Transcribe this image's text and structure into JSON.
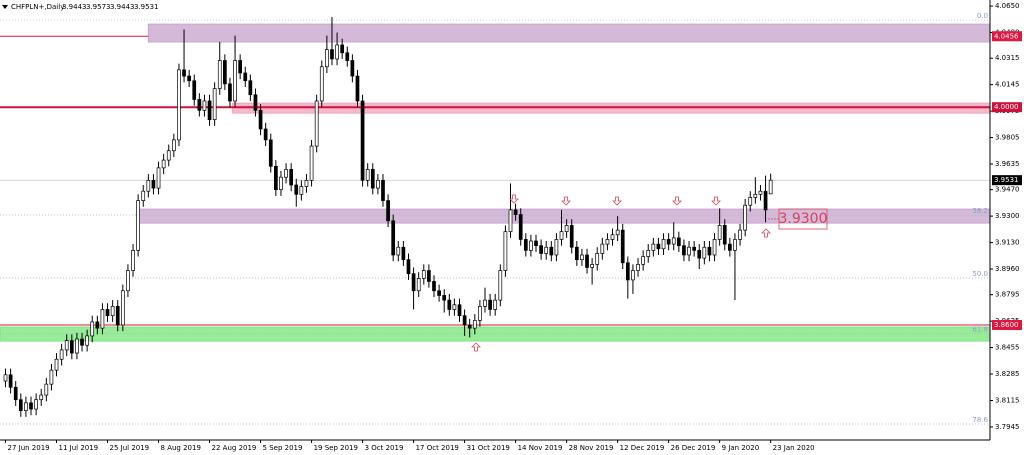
{
  "chart_data": {
    "type": "candlestick",
    "symbol": "CHFPLN+,Daily",
    "xlim": [
      -1.08,
      193.0
    ],
    "ylim": [
      3.7861,
      4.0689
    ],
    "xticks": [
      {
        "value": 0,
        "label": "27 Jun 2019"
      },
      {
        "value": 10,
        "label": "11 Jul 2019"
      },
      {
        "value": 20,
        "label": "25 Jul 2019"
      },
      {
        "value": 30,
        "label": "8 Aug 2019"
      },
      {
        "value": 40,
        "label": "22 Aug 2019"
      },
      {
        "value": 50,
        "label": "5 Sep 2019"
      },
      {
        "value": 60,
        "label": "19 Sep 2019"
      },
      {
        "value": 70,
        "label": "3 Oct 2019"
      },
      {
        "value": 80,
        "label": "17 Oct 2019"
      },
      {
        "value": 90,
        "label": "31 Oct 2019"
      },
      {
        "value": 100,
        "label": "14 Nov 2019"
      },
      {
        "value": 110,
        "label": "28 Nov 2019"
      },
      {
        "value": 120,
        "label": "12 Dec 2019"
      },
      {
        "value": 130,
        "label": "26 Dec 2019"
      },
      {
        "value": 140,
        "label": "9 Jan 2020"
      },
      {
        "value": 150,
        "label": "23 Jan 2020"
      }
    ],
    "yticks": [
      {
        "value": 4.065,
        "label": "4.0650"
      },
      {
        "value": 4.048,
        "label": "4.0480"
      },
      4.0315,
      4.0145,
      3.9975,
      3.9805,
      3.9635,
      {
        "value": 3.947,
        "label": "3.9470"
      },
      {
        "value": 3.93,
        "label": "3.9300"
      },
      {
        "value": 3.913,
        "label": "3.9130"
      },
      {
        "value": 3.896,
        "label": "3.8960"
      },
      3.8795,
      3.8625,
      3.8455,
      3.8285,
      3.8115,
      3.7945
    ],
    "up_color": "#ffffff",
    "down_color": "#000000",
    "wick_color": "#000000",
    "ohlc": [
      [
        3.824,
        3.832,
        3.82,
        3.828
      ],
      [
        3.828,
        3.832,
        3.816,
        3.82
      ],
      [
        3.82,
        3.824,
        3.808,
        3.812
      ],
      [
        3.812,
        3.816,
        3.801,
        3.805
      ],
      [
        3.805,
        3.814,
        3.801,
        3.81
      ],
      [
        3.81,
        3.814,
        3.802,
        3.806
      ],
      [
        3.806,
        3.816,
        3.802,
        3.812
      ],
      [
        3.812,
        3.819,
        3.808,
        3.815
      ],
      [
        3.815,
        3.826,
        3.811,
        3.822
      ],
      [
        3.822,
        3.835,
        3.818,
        3.831
      ],
      [
        3.831,
        3.842,
        3.827,
        3.838
      ],
      [
        3.838,
        3.848,
        3.834,
        3.844
      ],
      [
        3.844,
        3.854,
        3.84,
        3.85
      ],
      [
        3.85,
        3.854,
        3.838,
        3.842
      ],
      [
        3.842,
        3.855,
        3.838,
        3.851
      ],
      [
        3.851,
        3.855,
        3.843,
        3.847
      ],
      [
        3.847,
        3.857,
        3.843,
        3.853
      ],
      [
        3.853,
        3.866,
        3.849,
        3.862
      ],
      [
        3.862,
        3.866,
        3.854,
        3.858
      ],
      [
        3.858,
        3.874,
        3.854,
        3.87
      ],
      [
        3.87,
        3.874,
        3.862,
        3.866
      ],
      [
        3.866,
        3.876,
        3.862,
        3.872
      ],
      [
        3.872,
        3.876,
        3.856,
        3.86
      ],
      [
        3.86,
        3.886,
        3.856,
        3.882
      ],
      [
        3.882,
        3.899,
        3.878,
        3.895
      ],
      [
        3.895,
        3.912,
        3.891,
        3.908
      ],
      [
        3.908,
        3.944,
        3.904,
        3.94
      ],
      [
        3.94,
        3.95,
        3.936,
        3.946
      ],
      [
        3.946,
        3.957,
        3.942,
        3.953
      ],
      [
        3.953,
        3.957,
        3.944,
        3.948
      ],
      [
        3.948,
        3.965,
        3.944,
        3.961
      ],
      [
        3.961,
        3.97,
        3.957,
        3.966
      ],
      [
        3.966,
        3.976,
        3.962,
        3.972
      ],
      [
        3.972,
        3.983,
        3.968,
        3.979
      ],
      [
        3.979,
        4.028,
        3.975,
        4.024
      ],
      [
        4.024,
        4.05,
        4.016,
        4.02
      ],
      [
        4.02,
        4.024,
        4.013,
        4.017
      ],
      [
        4.017,
        4.021,
        4.001,
        4.005
      ],
      [
        4.005,
        4.009,
        3.994,
        3.998
      ],
      [
        3.998,
        4.008,
        3.994,
        4.004
      ],
      [
        4.004,
        4.008,
        3.988,
        3.992
      ],
      [
        3.992,
        4.016,
        3.988,
        4.012
      ],
      [
        4.012,
        4.042,
        4.008,
        4.03
      ],
      [
        4.03,
        4.034,
        4.011,
        4.015
      ],
      [
        4.015,
        4.019,
        4.0,
        4.004
      ],
      [
        4.004,
        4.046,
        4.0,
        4.03
      ],
      [
        4.03,
        4.034,
        4.018,
        4.022
      ],
      [
        4.022,
        4.026,
        4.013,
        4.017
      ],
      [
        4.017,
        4.021,
        4.004,
        4.008
      ],
      [
        4.008,
        4.012,
        3.994,
        3.998
      ],
      [
        3.998,
        4.002,
        3.982,
        3.986
      ],
      [
        3.986,
        3.99,
        3.975,
        3.979
      ],
      [
        3.979,
        3.983,
        3.958,
        3.962
      ],
      [
        3.962,
        3.966,
        3.943,
        3.947
      ],
      [
        3.947,
        3.959,
        3.943,
        3.955
      ],
      [
        3.955,
        3.964,
        3.951,
        3.96
      ],
      [
        3.96,
        3.964,
        3.946,
        3.95
      ],
      [
        3.95,
        3.954,
        3.936,
        3.944
      ],
      [
        3.944,
        3.953,
        3.94,
        3.949
      ],
      [
        3.949,
        3.957,
        3.945,
        3.953
      ],
      [
        3.953,
        3.979,
        3.949,
        3.975
      ],
      [
        3.975,
        4.008,
        3.971,
        4.004
      ],
      [
        4.004,
        4.03,
        4.0,
        4.026
      ],
      [
        4.026,
        4.046,
        4.022,
        4.037
      ],
      [
        4.037,
        4.058,
        4.027,
        4.031
      ],
      [
        4.031,
        4.048,
        4.027,
        4.04
      ],
      [
        4.04,
        4.044,
        4.031,
        4.035
      ],
      [
        4.035,
        4.039,
        4.026,
        4.03
      ],
      [
        4.03,
        4.034,
        4.016,
        4.02
      ],
      [
        4.02,
        4.024,
        4.0,
        4.004
      ],
      [
        4.004,
        4.008,
        3.949,
        3.953
      ],
      [
        3.953,
        3.964,
        3.949,
        3.96
      ],
      [
        3.96,
        3.964,
        3.944,
        3.948
      ],
      [
        3.948,
        3.957,
        3.944,
        3.953
      ],
      [
        3.953,
        3.957,
        3.936,
        3.94
      ],
      [
        3.94,
        3.944,
        3.923,
        3.927
      ],
      [
        3.927,
        3.931,
        3.901,
        3.905
      ],
      [
        3.905,
        3.914,
        3.901,
        3.91
      ],
      [
        3.91,
        3.914,
        3.898,
        3.902
      ],
      [
        3.902,
        3.906,
        3.889,
        3.893
      ],
      [
        3.893,
        3.897,
        3.87,
        3.882
      ],
      [
        3.882,
        3.894,
        3.878,
        3.89
      ],
      [
        3.89,
        3.899,
        3.886,
        3.895
      ],
      [
        3.895,
        3.899,
        3.884,
        3.888
      ],
      [
        3.888,
        3.892,
        3.878,
        3.882
      ],
      [
        3.882,
        3.886,
        3.875,
        3.879
      ],
      [
        3.879,
        3.883,
        3.868,
        3.876
      ],
      [
        3.876,
        3.88,
        3.866,
        3.87
      ],
      [
        3.87,
        3.877,
        3.866,
        3.873
      ],
      [
        3.873,
        3.877,
        3.862,
        3.866
      ],
      [
        3.866,
        3.87,
        3.853,
        3.86
      ],
      [
        3.86,
        3.864,
        3.852,
        3.858
      ],
      [
        3.858,
        3.867,
        3.854,
        3.863
      ],
      [
        3.863,
        3.876,
        3.859,
        3.872
      ],
      [
        3.872,
        3.884,
        3.868,
        3.876
      ],
      [
        3.876,
        3.88,
        3.866,
        3.87
      ],
      [
        3.87,
        3.88,
        3.866,
        3.876
      ],
      [
        3.876,
        3.899,
        3.872,
        3.895
      ],
      [
        3.895,
        3.924,
        3.891,
        3.92
      ],
      [
        3.92,
        3.951,
        3.916,
        3.934
      ],
      [
        3.934,
        3.938,
        3.927,
        3.931
      ],
      [
        3.931,
        3.935,
        3.911,
        3.915
      ],
      [
        3.915,
        3.919,
        3.904,
        3.908
      ],
      [
        3.908,
        3.918,
        3.904,
        3.914
      ],
      [
        3.914,
        3.918,
        3.907,
        3.911
      ],
      [
        3.911,
        3.915,
        3.902,
        3.906
      ],
      [
        3.906,
        3.914,
        3.902,
        3.91
      ],
      [
        3.91,
        3.914,
        3.901,
        3.905
      ],
      [
        3.905,
        3.919,
        3.901,
        3.915
      ],
      [
        3.915,
        3.934,
        3.911,
        3.92
      ],
      [
        3.92,
        3.928,
        3.916,
        3.924
      ],
      [
        3.924,
        3.928,
        3.906,
        3.91
      ],
      [
        3.91,
        3.914,
        3.898,
        3.902
      ],
      [
        3.902,
        3.909,
        3.898,
        3.905
      ],
      [
        3.905,
        3.909,
        3.893,
        3.897
      ],
      [
        3.897,
        3.903,
        3.886,
        3.899
      ],
      [
        3.899,
        3.91,
        3.895,
        3.906
      ],
      [
        3.906,
        3.916,
        3.902,
        3.912
      ],
      [
        3.912,
        3.919,
        3.908,
        3.915
      ],
      [
        3.915,
        3.922,
        3.911,
        3.918
      ],
      [
        3.918,
        3.93,
        3.914,
        3.921
      ],
      [
        3.921,
        3.925,
        3.896,
        3.9
      ],
      [
        3.9,
        3.904,
        3.877,
        3.889
      ],
      [
        3.889,
        3.899,
        3.88,
        3.895
      ],
      [
        3.895,
        3.903,
        3.891,
        3.899
      ],
      [
        3.899,
        3.908,
        3.895,
        3.904
      ],
      [
        3.904,
        3.912,
        3.9,
        3.908
      ],
      [
        3.908,
        3.916,
        3.904,
        3.912
      ],
      [
        3.912,
        3.916,
        3.905,
        3.909
      ],
      [
        3.909,
        3.919,
        3.905,
        3.915
      ],
      [
        3.915,
        3.919,
        3.908,
        3.912
      ],
      [
        3.912,
        3.926,
        3.908,
        3.916
      ],
      [
        3.916,
        3.92,
        3.907,
        3.911
      ],
      [
        3.911,
        3.915,
        3.901,
        3.905
      ],
      [
        3.905,
        3.914,
        3.901,
        3.91
      ],
      [
        3.91,
        3.914,
        3.904,
        3.908
      ],
      [
        3.908,
        3.912,
        3.896,
        3.903
      ],
      [
        3.903,
        3.914,
        3.899,
        3.91
      ],
      [
        3.91,
        3.914,
        3.901,
        3.905
      ],
      [
        3.905,
        3.919,
        3.901,
        3.915
      ],
      [
        3.915,
        3.935,
        3.911,
        3.924
      ],
      [
        3.924,
        3.928,
        3.908,
        3.912
      ],
      [
        3.912,
        3.916,
        3.904,
        3.908
      ],
      [
        3.908,
        3.919,
        3.876,
        3.915
      ],
      [
        3.915,
        3.925,
        3.911,
        3.921
      ],
      [
        3.921,
        3.941,
        3.917,
        3.937
      ],
      [
        3.937,
        3.946,
        3.933,
        3.942
      ],
      [
        3.942,
        3.955,
        3.938,
        3.944
      ],
      [
        3.944,
        3.95,
        3.94,
        3.946
      ],
      [
        3.946,
        3.956,
        3.926,
        3.934
      ],
      [
        3.9443,
        3.9573,
        3.9443,
        3.9531
      ]
    ],
    "zones": [
      {
        "from": 4.0419,
        "to": 4.0534,
        "start": 28,
        "color": "#c9a8cf"
      },
      {
        "from": 3.9962,
        "to": 4.0026,
        "start": 44.5,
        "color": "#f4a6bd"
      },
      {
        "from": 3.9255,
        "to": 3.9345,
        "start": 26,
        "color": "#c9a8cf"
      },
      {
        "from": 3.8497,
        "to": 3.8587,
        "start": -1.08,
        "color": "#7ee77e"
      }
    ],
    "fib_levels": [
      {
        "value": 4.056,
        "label": "0.0"
      },
      {
        "value": 3.9307,
        "label": "38.2"
      },
      {
        "value": 3.8902,
        "label": "50.0"
      },
      {
        "value": 3.8545,
        "label": "61.8"
      },
      {
        "value": 3.7964,
        "label": "78.6"
      }
    ],
    "price_lines": [
      {
        "value": 4.0456,
        "label": "4.0456",
        "color": "#e0163f",
        "end": 28,
        "width": 1
      },
      {
        "value": 4.0,
        "label": "4.0000",
        "color": "#d0103a",
        "end": 193.0,
        "width": 2
      },
      {
        "value": 3.9531,
        "label": "3.9531",
        "color": "#000000",
        "end": 193.0,
        "width": 0.5
      },
      {
        "value": 3.86,
        "label": "3.8600",
        "color": "#e0163f",
        "end": 193.0,
        "width": 1
      }
    ],
    "annotation": "3.9300"
  }
}
